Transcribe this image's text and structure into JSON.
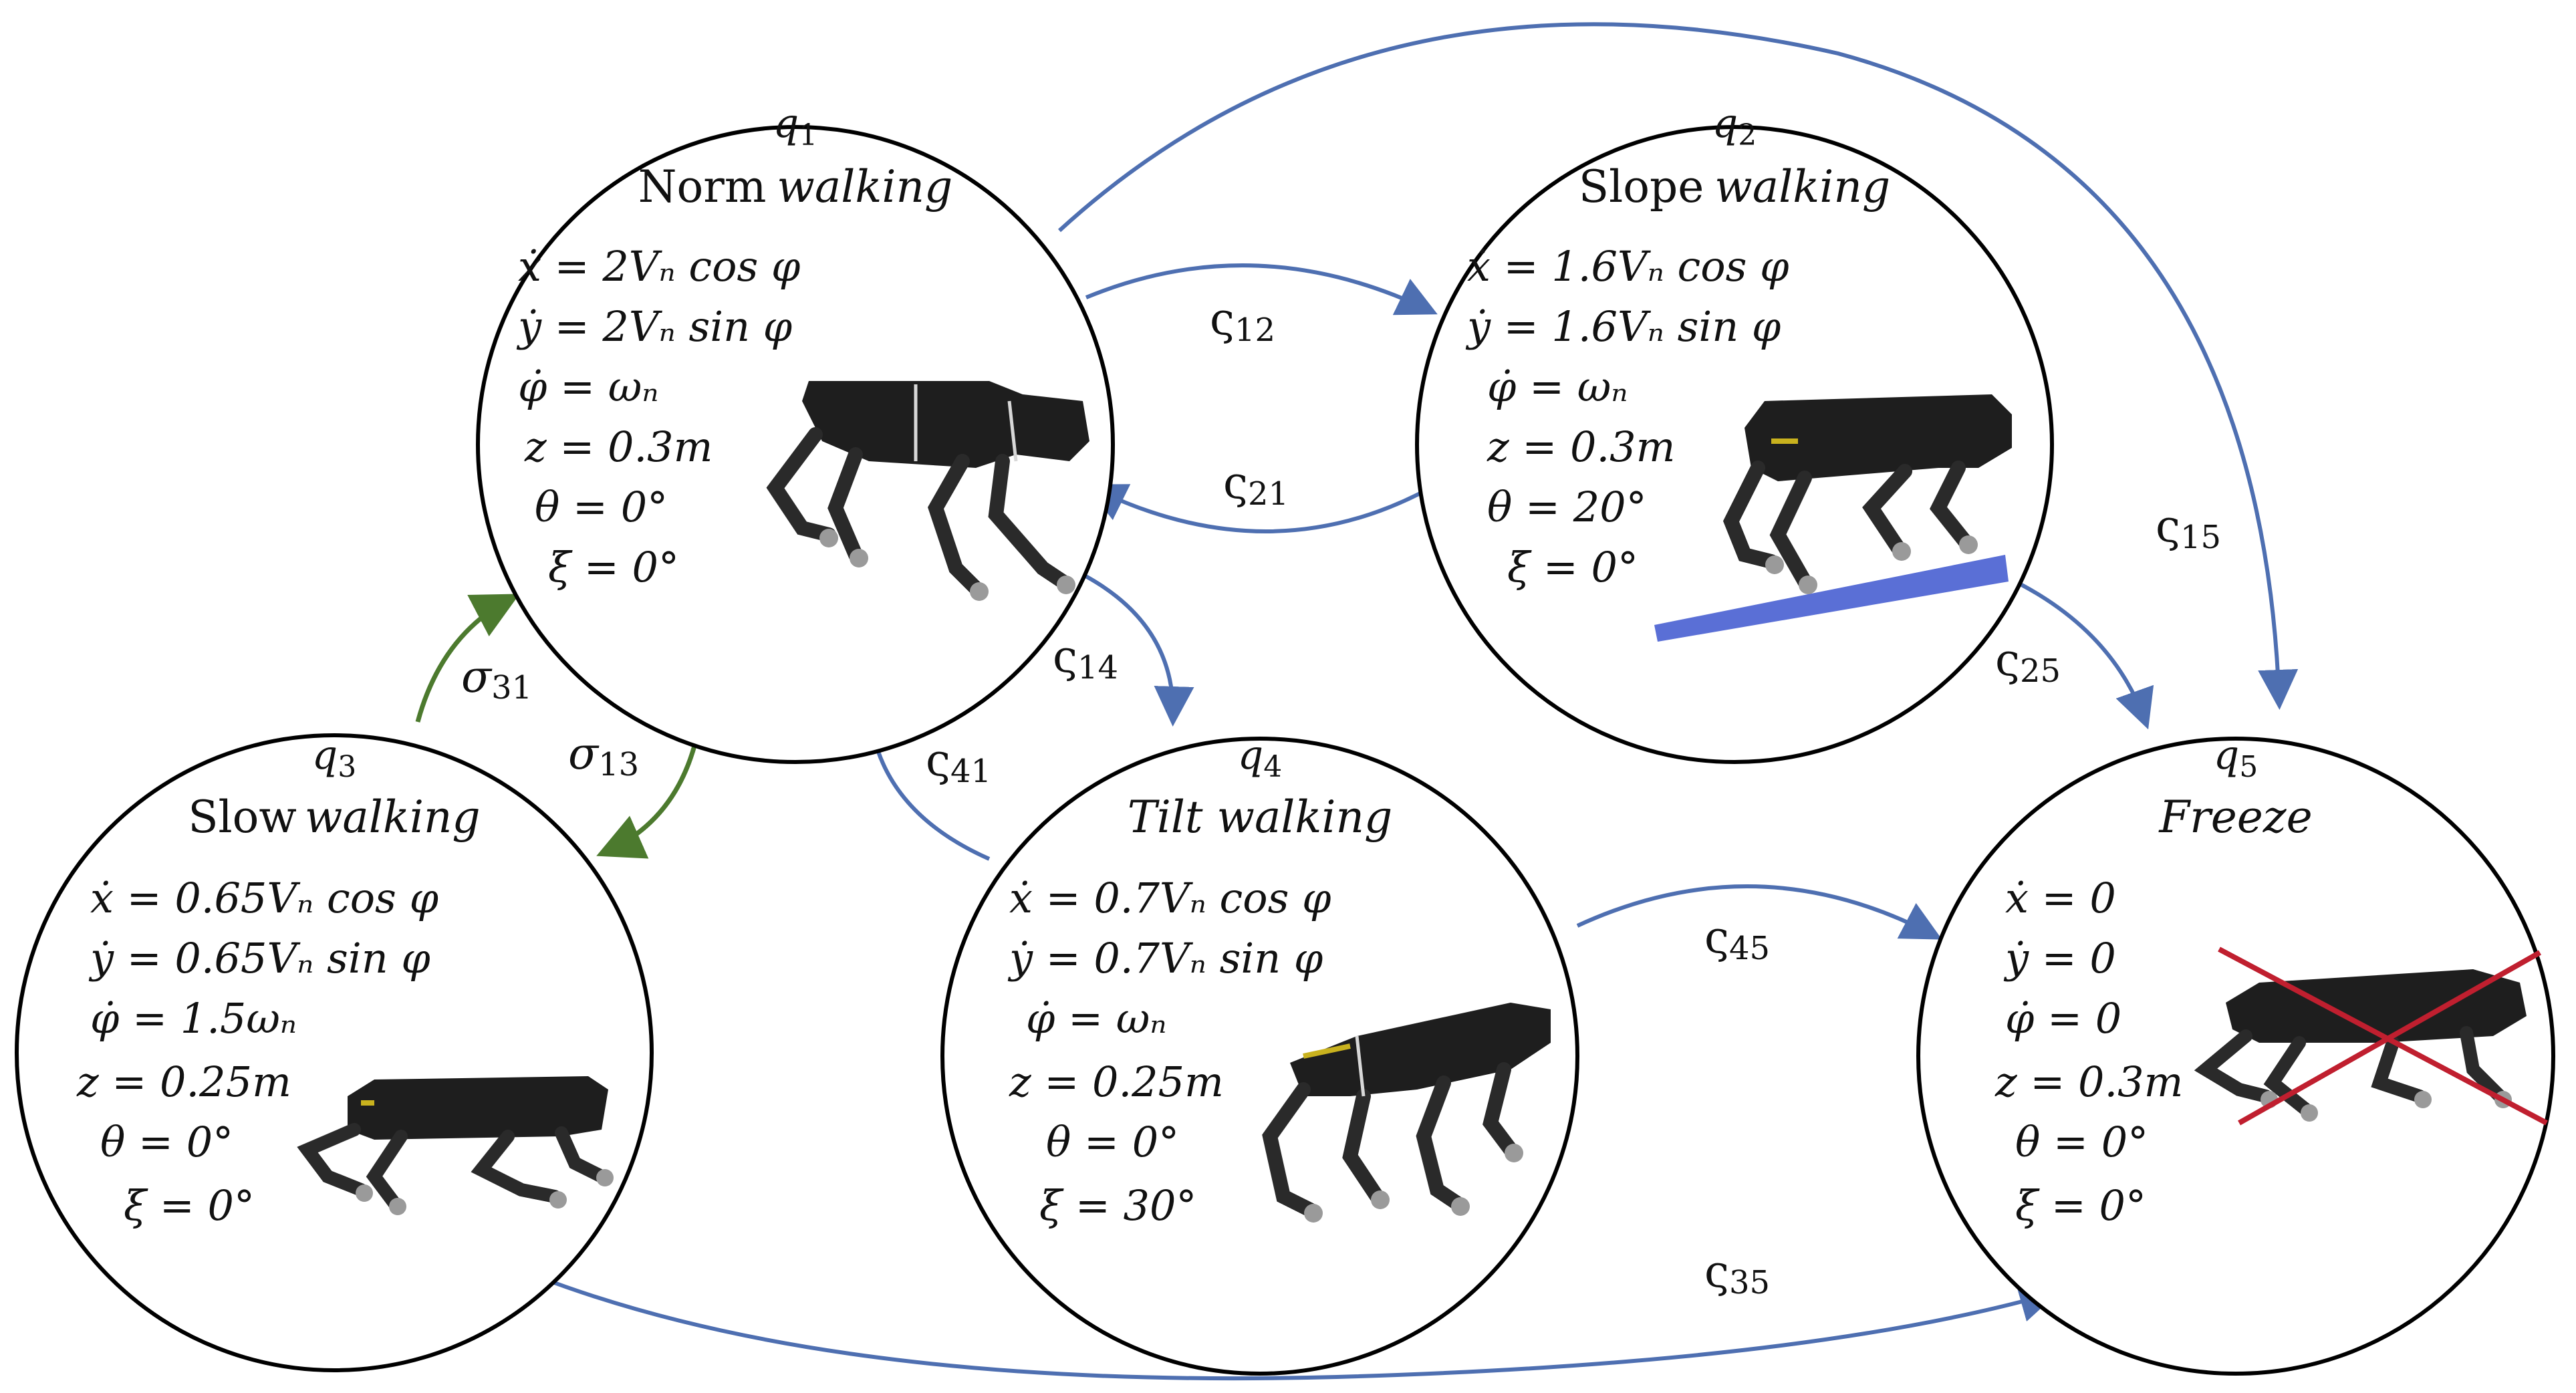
{
  "colors": {
    "blue_edge": "#4e6fb1",
    "green_edge": "#4c7a2e",
    "robot": "#1e1e1e",
    "slope": "#5a6fd6",
    "freeze_cross": "#c01f2f"
  },
  "states": {
    "q1": {
      "id_letter": "q",
      "id_sub": "1",
      "name_plain": "Norm",
      "name_italic": "walking",
      "lines": [
        "ẋ = 2Vₙ cos φ",
        "ẏ = 2Vₙ sin φ",
        "φ̇ = ωₙ",
        "z = 0.3m",
        "θ = 0°",
        "ξ = 0°"
      ]
    },
    "q2": {
      "id_letter": "q",
      "id_sub": "2",
      "name_plain": "Slope",
      "name_italic": "walking",
      "lines": [
        "ẋ = 1.6Vₙ cos φ",
        "ẏ = 1.6Vₙ sin φ",
        "φ̇ = ωₙ",
        "z = 0.3m",
        "θ = 20°",
        "ξ = 0°"
      ]
    },
    "q3": {
      "id_letter": "q",
      "id_sub": "3",
      "name_plain": "Slow",
      "name_italic": "walking",
      "lines": [
        "ẋ = 0.65Vₙ cos φ",
        "ẏ = 0.65Vₙ sin φ",
        "φ̇ = 1.5ωₙ",
        "z = 0.25m",
        "θ = 0°",
        "ξ = 0°"
      ]
    },
    "q4": {
      "id_letter": "q",
      "id_sub": "4",
      "name_plain": "",
      "name_italic": "Tilt walking",
      "lines": [
        "ẋ = 0.7Vₙ cos φ",
        "ẏ = 0.7Vₙ sin φ",
        "φ̇ = ωₙ",
        "z = 0.25m",
        "θ = 0°",
        "ξ = 30°"
      ]
    },
    "q5": {
      "id_letter": "q",
      "id_sub": "5",
      "name_plain": "",
      "name_italic": "Freeze",
      "lines": [
        "ẋ = 0",
        "ẏ = 0",
        "φ̇ = 0",
        "z = 0.3m",
        "θ = 0°",
        "ξ = 0°"
      ]
    }
  },
  "edges": {
    "s12": {
      "sym": "ς",
      "sub": "12"
    },
    "s21": {
      "sym": "ς",
      "sub": "21"
    },
    "s14": {
      "sym": "ς",
      "sub": "14"
    },
    "s41": {
      "sym": "ς",
      "sub": "41"
    },
    "s15": {
      "sym": "ς",
      "sub": "15"
    },
    "s25": {
      "sym": "ς",
      "sub": "25"
    },
    "s45": {
      "sym": "ς",
      "sub": "45"
    },
    "s35": {
      "sym": "ς",
      "sub": "35"
    },
    "sig31": {
      "sym": "σ",
      "sub": "31"
    },
    "sig13": {
      "sym": "σ",
      "sub": "13"
    }
  }
}
